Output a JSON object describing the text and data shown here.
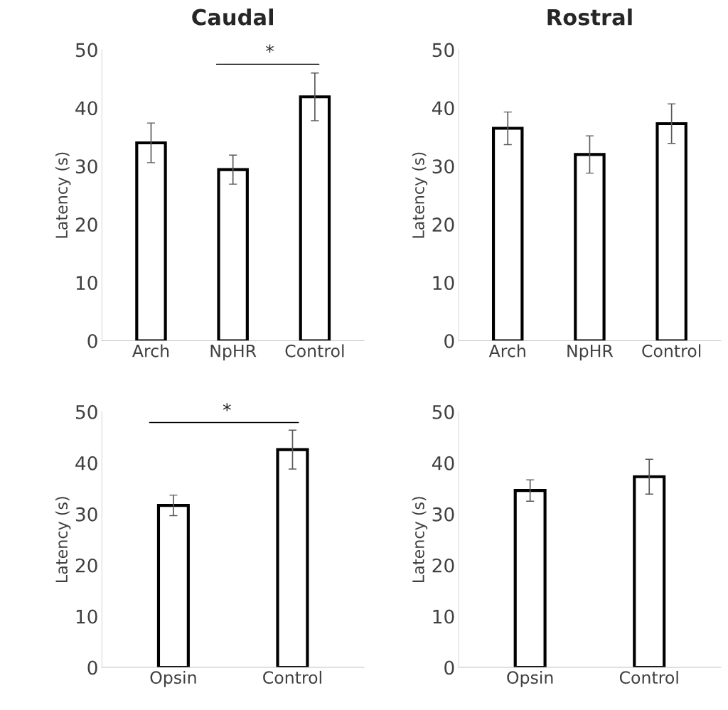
{
  "chart_data": [
    {
      "type": "bar",
      "title": "Caudal",
      "ylabel": "Latency (s)",
      "categories": [
        "Arch",
        "NpHR",
        "Control"
      ],
      "values": [
        34.0,
        29.4,
        41.9
      ],
      "errors": [
        3.4,
        2.5,
        4.1
      ],
      "color": "#ffffff",
      "ylim": [
        0,
        50
      ],
      "yticks": [
        0,
        10,
        20,
        30,
        40,
        50
      ],
      "grid": false,
      "annotations": [
        "*"
      ]
    },
    {
      "type": "bar",
      "title": "Rostral",
      "ylabel": "Latency (s)",
      "categories": [
        "Arch",
        "NpHR",
        "Control"
      ],
      "values": [
        36.5,
        32.0,
        37.3
      ],
      "errors": [
        2.8,
        3.2,
        3.4
      ],
      "color": "#ffffff",
      "ylim": [
        0,
        50
      ],
      "yticks": [
        0,
        10,
        20,
        30,
        40,
        50
      ],
      "grid": false
    },
    {
      "type": "bar",
      "ylabel": "Latency (s)",
      "categories": [
        "Opsin",
        "Control"
      ],
      "values": [
        31.7,
        42.6
      ],
      "errors": [
        2.0,
        3.8
      ],
      "color": "#ffffff",
      "ylim": [
        0,
        50
      ],
      "yticks": [
        0,
        10,
        20,
        30,
        40,
        50
      ],
      "grid": false,
      "annotations": [
        "*"
      ]
    },
    {
      "type": "bar",
      "ylabel": "Latency (s)",
      "categories": [
        "Opsin",
        "Control"
      ],
      "values": [
        34.6,
        37.3
      ],
      "errors": [
        2.1,
        3.4
      ],
      "color": "#ffffff",
      "ylim": [
        0,
        50
      ],
      "yticks": [
        0,
        10,
        20,
        30,
        40,
        50
      ],
      "grid": false
    }
  ]
}
